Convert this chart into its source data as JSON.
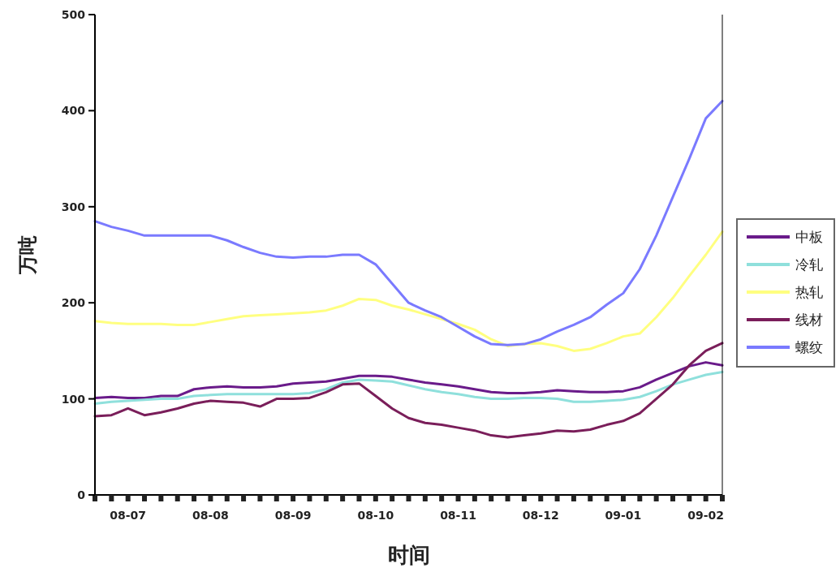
{
  "chart_data": {
    "type": "line",
    "xlabel": "时间",
    "ylabel": "万吨",
    "categories": [
      null,
      null,
      "08-07",
      null,
      null,
      null,
      null,
      "08-08",
      null,
      null,
      null,
      null,
      "08-09",
      null,
      null,
      null,
      null,
      "08-10",
      null,
      null,
      null,
      null,
      "08-11",
      null,
      null,
      null,
      null,
      "08-12",
      null,
      null,
      null,
      null,
      "09-01",
      null,
      null,
      null,
      null,
      "09-02",
      null
    ],
    "series": [
      {
        "name": "中板",
        "color": "#6a1b8a",
        "values": [
          101,
          102,
          101,
          101,
          103,
          103,
          110,
          112,
          113,
          112,
          112,
          113,
          116,
          117,
          118,
          121,
          124,
          124,
          123,
          120,
          117,
          115,
          113,
          110,
          107,
          106,
          106,
          107,
          109,
          108,
          107,
          107,
          108,
          112,
          120,
          127,
          134,
          138,
          135
        ]
      },
      {
        "name": "冷轧",
        "color": "#8fe0dc",
        "values": [
          95,
          97,
          98,
          99,
          100,
          100,
          103,
          104,
          105,
          105,
          105,
          105,
          105,
          106,
          110,
          117,
          120,
          119,
          118,
          114,
          110,
          107,
          105,
          102,
          100,
          100,
          101,
          101,
          100,
          97,
          97,
          98,
          99,
          102,
          108,
          115,
          120,
          125,
          128
        ]
      },
      {
        "name": "热轧",
        "color": "#ffff80",
        "values": [
          181,
          179,
          178,
          178,
          178,
          177,
          177,
          180,
          183,
          186,
          187,
          188,
          189,
          190,
          192,
          197,
          204,
          203,
          197,
          193,
          188,
          183,
          178,
          172,
          162,
          155,
          157,
          158,
          155,
          150,
          152,
          158,
          165,
          168,
          185,
          205,
          228,
          250,
          274
        ]
      },
      {
        "name": "线材",
        "color": "#7a1e5a",
        "values": [
          82,
          83,
          90,
          83,
          86,
          90,
          95,
          98,
          97,
          96,
          92,
          100,
          100,
          101,
          107,
          115,
          116,
          103,
          90,
          80,
          75,
          73,
          70,
          67,
          62,
          60,
          62,
          64,
          67,
          66,
          68,
          73,
          77,
          85,
          100,
          115,
          135,
          150,
          158
        ]
      },
      {
        "name": "螺纹",
        "color": "#7a7aff",
        "values": [
          285,
          279,
          275,
          270,
          270,
          270,
          270,
          270,
          265,
          258,
          252,
          248,
          247,
          248,
          248,
          250,
          250,
          240,
          220,
          200,
          192,
          185,
          175,
          165,
          157,
          156,
          157,
          162,
          170,
          177,
          185,
          198,
          210,
          235,
          270,
          310,
          350,
          392,
          410
        ]
      }
    ],
    "ylim": [
      0,
      500
    ],
    "yticks": [
      0,
      100,
      200,
      300,
      400,
      500
    ],
    "grid": false,
    "legend": "right",
    "marker": "none",
    "line_style": "solid"
  }
}
